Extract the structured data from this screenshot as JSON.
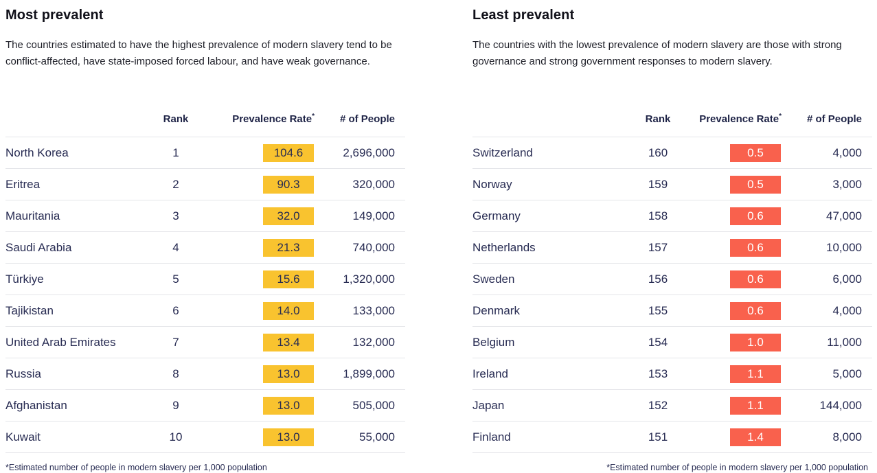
{
  "chart_data": [
    {
      "type": "table",
      "title": "Most prevalent",
      "subtitle": "The countries estimated to have the highest prevalence of modern slavery tend to be conflict-affected, have state-imposed forced labour, and have weak governance.",
      "columns": {
        "country": "",
        "rank": "Rank",
        "rate": "Prevalence Rate",
        "rate_sup": "*",
        "people": "# of People"
      },
      "badge_color": "#f9c32f",
      "badge_text_color": "#272b52",
      "footnote": "*Estimated number of people in modern slavery per 1,000 population",
      "rows": [
        {
          "country": "North Korea",
          "rank": "1",
          "rate": "104.6",
          "people": "2,696,000"
        },
        {
          "country": "Eritrea",
          "rank": "2",
          "rate": "90.3",
          "people": "320,000"
        },
        {
          "country": "Mauritania",
          "rank": "3",
          "rate": "32.0",
          "people": "149,000"
        },
        {
          "country": "Saudi Arabia",
          "rank": "4",
          "rate": "21.3",
          "people": "740,000"
        },
        {
          "country": "Türkiye",
          "rank": "5",
          "rate": "15.6",
          "people": "1,320,000"
        },
        {
          "country": "Tajikistan",
          "rank": "6",
          "rate": "14.0",
          "people": "133,000"
        },
        {
          "country": "United Arab Emirates",
          "rank": "7",
          "rate": "13.4",
          "people": "132,000"
        },
        {
          "country": "Russia",
          "rank": "8",
          "rate": "13.0",
          "people": "1,899,000"
        },
        {
          "country": "Afghanistan",
          "rank": "9",
          "rate": "13.0",
          "people": "505,000"
        },
        {
          "country": "Kuwait",
          "rank": "10",
          "rate": "13.0",
          "people": "55,000"
        }
      ]
    },
    {
      "type": "table",
      "title": "Least prevalent",
      "subtitle": "The countries with the lowest prevalence of modern slavery are those with strong governance and strong government responses to modern slavery.",
      "columns": {
        "country": "",
        "rank": "Rank",
        "rate": "Prevalence Rate",
        "rate_sup": "*",
        "people": "# of People"
      },
      "badge_color": "#f9614d",
      "badge_text_color": "#ffffff",
      "footnote": "*Estimated number of people in modern slavery per 1,000 population",
      "rows": [
        {
          "country": "Switzerland",
          "rank": "160",
          "rate": "0.5",
          "people": "4,000"
        },
        {
          "country": "Norway",
          "rank": "159",
          "rate": "0.5",
          "people": "3,000"
        },
        {
          "country": "Germany",
          "rank": "158",
          "rate": "0.6",
          "people": "47,000"
        },
        {
          "country": "Netherlands",
          "rank": "157",
          "rate": "0.6",
          "people": "10,000"
        },
        {
          "country": "Sweden",
          "rank": "156",
          "rate": "0.6",
          "people": "6,000"
        },
        {
          "country": "Denmark",
          "rank": "155",
          "rate": "0.6",
          "people": "4,000"
        },
        {
          "country": "Belgium",
          "rank": "154",
          "rate": "1.0",
          "people": "11,000"
        },
        {
          "country": "Ireland",
          "rank": "153",
          "rate": "1.1",
          "people": "5,000"
        },
        {
          "country": "Japan",
          "rank": "152",
          "rate": "1.1",
          "people": "144,000"
        },
        {
          "country": "Finland",
          "rank": "151",
          "rate": "1.4",
          "people": "8,000"
        }
      ]
    }
  ]
}
